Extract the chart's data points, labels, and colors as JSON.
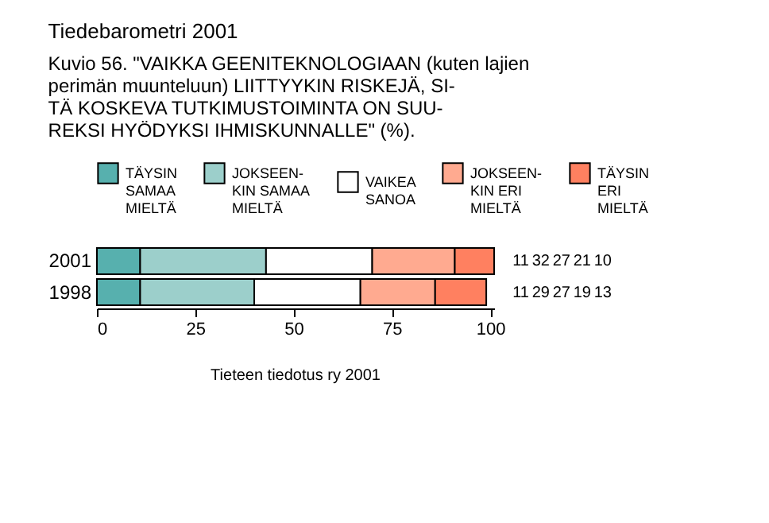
{
  "chart_data": {
    "type": "bar",
    "orientation": "horizontal",
    "stacked": true,
    "title": "Tiedebarometri 2001",
    "subtitle": "Kuvio 56.  \"VAIKKA GEENITEKNOLOGIAAN (kuten lajien\nperimän muunteluun) LIITTYYKIN RISKEJÄ, SI-\nTÄ KOSKEVA TUTKIMUSTOIMINTA ON SUU-\nREKSI HYÖDYKSI IHMISKUNNALLE\" (%).",
    "categories": [
      "2001",
      "1998"
    ],
    "series": [
      {
        "name": "TÄYSIN\nSAMAA\nMIELTÄ",
        "color": "#57b0ae",
        "values": [
          11,
          11
        ]
      },
      {
        "name": "JOKSEEN-\nKIN SAMAA\nMIELTÄ",
        "color": "#9ccfcb",
        "values": [
          32,
          29
        ]
      },
      {
        "name": "VAIKEA\nSANOA",
        "color": "#ffffff",
        "values": [
          27,
          27
        ]
      },
      {
        "name": "JOKSEEN-\nKIN ERI\nMIELTÄ",
        "color": "#ffaa90",
        "values": [
          21,
          19
        ]
      },
      {
        "name": "TÄYSIN\nERI\nMIELTÄ",
        "color": "#ff8060",
        "values": [
          10,
          13
        ]
      }
    ],
    "xlim": [
      0,
      101
    ],
    "xticks": [
      0,
      25,
      50,
      75,
      100
    ],
    "data_labels": true,
    "legend": "top",
    "grid": false,
    "annotations": [
      "Tieteen tiedotus ry 2001"
    ]
  }
}
